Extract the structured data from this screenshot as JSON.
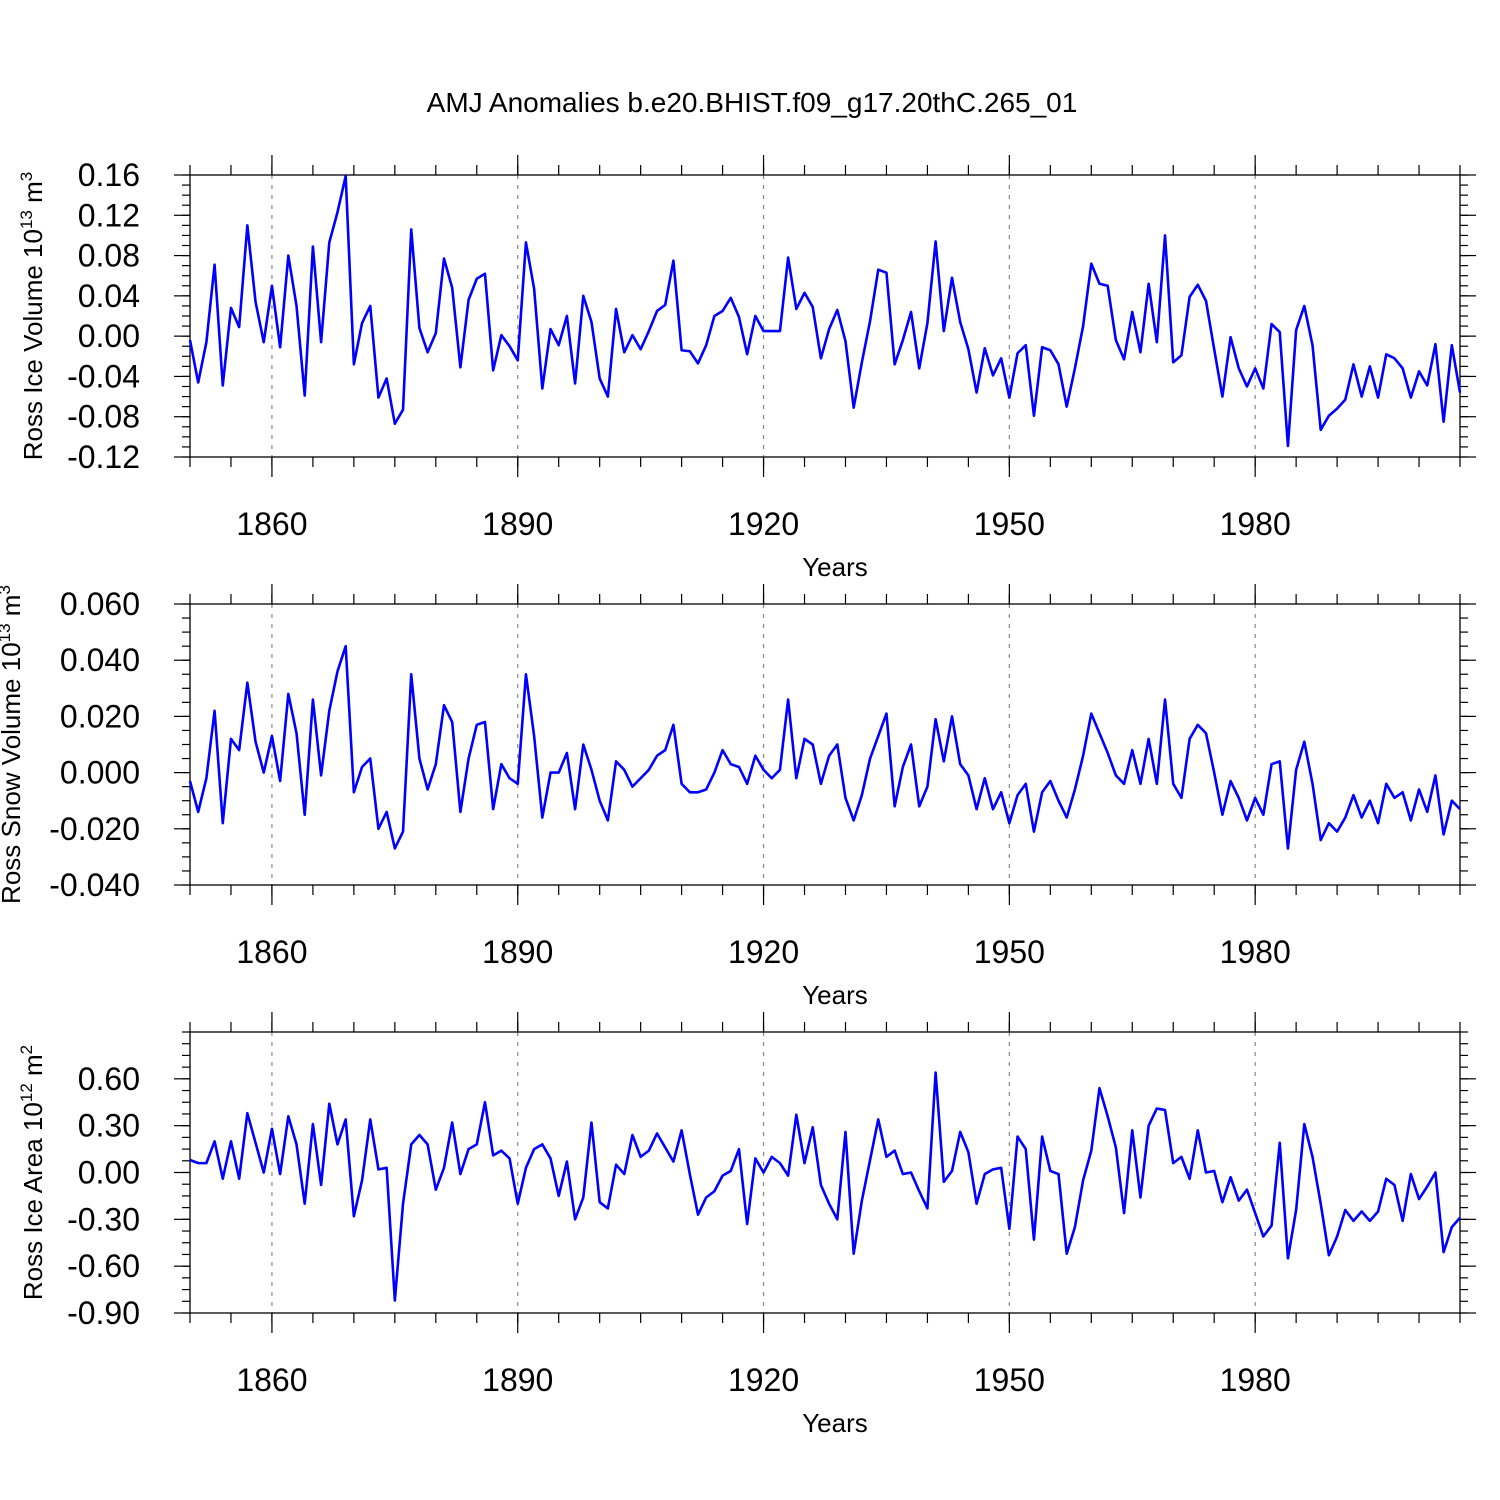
{
  "title": "AMJ Anomalies b.e20.BHIST.f09_g17.20thC.265_01",
  "chart_data": [
    {
      "type": "line",
      "title": "AMJ Anomalies b.e20.BHIST.f09_g17.20thC.265_01",
      "xlabel": "Years",
      "ylabel": {
        "main": "Ross Ice Volume 10",
        "sup1": "13",
        "mid": " m",
        "sup2": "3"
      },
      "xlim": [
        1850,
        2005
      ],
      "ylim": [
        -0.12,
        0.16
      ],
      "yticks": [
        -0.12,
        -0.08,
        -0.04,
        0.0,
        0.04,
        0.08,
        0.12,
        0.16
      ],
      "ytick_labels": [
        "-0.12",
        "-0.08",
        "-0.04",
        "0.00",
        "0.04",
        "0.08",
        "0.12",
        "0.16"
      ],
      "yminor_step": 0.01,
      "xticks": [
        1860,
        1890,
        1920,
        1950,
        1980
      ],
      "xtick_labels": [
        "1860",
        "1890",
        "1920",
        "1950",
        "1980"
      ],
      "xminor_step": 5,
      "grid": "x-major-dashed",
      "color": "#0000ff",
      "x_start": 1850,
      "x_step": 1,
      "series": [
        {
          "name": "Ross Ice Volume",
          "values": [
            -0.004,
            -0.046,
            -0.006,
            0.071,
            -0.049,
            0.028,
            0.009,
            0.11,
            0.034,
            -0.006,
            0.05,
            -0.011,
            0.08,
            0.03,
            -0.059,
            0.089,
            -0.006,
            0.093,
            0.123,
            0.159,
            -0.028,
            0.013,
            0.03,
            -0.061,
            -0.042,
            -0.087,
            -0.073,
            0.106,
            0.008,
            -0.016,
            0.003,
            0.077,
            0.048,
            -0.031,
            0.036,
            0.057,
            0.062,
            -0.034,
            0.001,
            -0.01,
            -0.024,
            0.093,
            0.047,
            -0.052,
            0.007,
            -0.009,
            0.02,
            -0.047,
            0.04,
            0.014,
            -0.042,
            -0.06,
            0.027,
            -0.016,
            0.001,
            -0.013,
            0.005,
            0.025,
            0.031,
            0.075,
            -0.014,
            -0.015,
            -0.027,
            -0.009,
            0.02,
            0.025,
            0.038,
            0.019,
            -0.018,
            0.02,
            0.005,
            0.005,
            0.005,
            0.078,
            0.027,
            0.043,
            0.029,
            -0.022,
            0.007,
            0.026,
            -0.005,
            -0.071,
            -0.026,
            0.015,
            0.066,
            0.063,
            -0.028,
            -0.004,
            0.024,
            -0.032,
            0.013,
            0.094,
            0.005,
            0.058,
            0.014,
            -0.013,
            -0.056,
            -0.012,
            -0.039,
            -0.022,
            -0.061,
            -0.017,
            -0.009,
            -0.079,
            -0.011,
            -0.014,
            -0.028,
            -0.07,
            -0.032,
            0.01,
            0.072,
            0.052,
            0.05,
            -0.004,
            -0.023,
            0.024,
            -0.016,
            0.052,
            -0.006,
            0.1,
            -0.026,
            -0.019,
            0.039,
            0.051,
            0.035,
            -0.013,
            -0.06,
            -0.001,
            -0.032,
            -0.05,
            -0.032,
            -0.052,
            0.012,
            0.004,
            -0.109,
            0.006,
            0.03,
            -0.009,
            -0.093,
            -0.079,
            -0.072,
            -0.063,
            -0.028,
            -0.06,
            -0.03,
            -0.061,
            -0.018,
            -0.022,
            -0.032,
            -0.061,
            -0.035,
            -0.049,
            -0.008,
            -0.085,
            -0.009,
            -0.056
          ]
        }
      ]
    },
    {
      "type": "line",
      "title": "",
      "xlabel": "Years",
      "ylabel": {
        "main": "Ross Snow Volume 10",
        "sup1": "13",
        "mid": " m",
        "sup2": "3"
      },
      "xlim": [
        1850,
        2005
      ],
      "ylim": [
        -0.04,
        0.06
      ],
      "yticks": [
        -0.04,
        -0.02,
        0.0,
        0.02,
        0.04,
        0.06
      ],
      "ytick_labels": [
        "-0.040",
        "-0.020",
        "0.000",
        "0.020",
        "0.040",
        "0.060"
      ],
      "yminor_step": 0.005,
      "xticks": [
        1860,
        1890,
        1920,
        1950,
        1980
      ],
      "xtick_labels": [
        "1860",
        "1890",
        "1920",
        "1950",
        "1980"
      ],
      "xminor_step": 5,
      "grid": "x-major-dashed",
      "color": "#0000ff",
      "x_start": 1850,
      "x_step": 1,
      "series": [
        {
          "name": "Ross Snow Volume",
          "values": [
            -0.003,
            -0.014,
            -0.002,
            0.022,
            -0.018,
            0.012,
            0.008,
            0.032,
            0.011,
            0.0,
            0.013,
            -0.003,
            0.028,
            0.014,
            -0.015,
            0.026,
            -0.001,
            0.022,
            0.036,
            0.045,
            -0.007,
            0.002,
            0.005,
            -0.02,
            -0.014,
            -0.027,
            -0.021,
            0.035,
            0.005,
            -0.006,
            0.003,
            0.024,
            0.018,
            -0.014,
            0.005,
            0.017,
            0.018,
            -0.013,
            0.003,
            -0.002,
            -0.004,
            0.035,
            0.013,
            -0.016,
            0.0,
            0.0,
            0.007,
            -0.013,
            0.01,
            0.001,
            -0.01,
            -0.017,
            0.004,
            0.001,
            -0.005,
            -0.002,
            0.001,
            0.006,
            0.008,
            0.017,
            -0.004,
            -0.007,
            -0.007,
            -0.006,
            0.0,
            0.008,
            0.003,
            0.002,
            -0.004,
            0.006,
            0.001,
            -0.002,
            0.001,
            0.026,
            -0.002,
            0.012,
            0.01,
            -0.004,
            0.006,
            0.01,
            -0.009,
            -0.017,
            -0.008,
            0.005,
            0.013,
            0.021,
            -0.012,
            0.002,
            0.01,
            -0.012,
            -0.005,
            0.019,
            0.004,
            0.02,
            0.003,
            -0.001,
            -0.013,
            -0.002,
            -0.013,
            -0.007,
            -0.018,
            -0.008,
            -0.004,
            -0.021,
            -0.007,
            -0.003,
            -0.01,
            -0.016,
            -0.006,
            0.006,
            0.021,
            0.014,
            0.007,
            -0.001,
            -0.004,
            0.008,
            -0.004,
            0.012,
            -0.004,
            0.026,
            -0.004,
            -0.009,
            0.012,
            0.017,
            0.014,
            0.0,
            -0.015,
            -0.003,
            -0.009,
            -0.017,
            -0.009,
            -0.015,
            0.003,
            0.004,
            -0.027,
            0.001,
            0.011,
            -0.004,
            -0.024,
            -0.018,
            -0.021,
            -0.016,
            -0.008,
            -0.016,
            -0.01,
            -0.018,
            -0.004,
            -0.009,
            -0.007,
            -0.017,
            -0.006,
            -0.014,
            -0.001,
            -0.022,
            -0.01,
            -0.013
          ]
        }
      ]
    },
    {
      "type": "line",
      "title": "",
      "xlabel": "Years",
      "ylabel": {
        "main": "Ross Ice Area 10",
        "sup1": "12",
        "mid": " m",
        "sup2": "2"
      },
      "xlim": [
        1850,
        2005
      ],
      "ylim": [
        -0.9,
        0.9
      ],
      "yticks": [
        -0.9,
        -0.6,
        -0.3,
        0.0,
        0.3,
        0.6
      ],
      "ytick_labels": [
        "-0.90",
        "-0.60",
        "-0.30",
        "0.00",
        "0.30",
        "0.60"
      ],
      "yminor_step": 0.075,
      "xticks": [
        1860,
        1890,
        1920,
        1950,
        1980
      ],
      "xtick_labels": [
        "1860",
        "1890",
        "1920",
        "1950",
        "1980"
      ],
      "xminor_step": 5,
      "grid": "x-major-dashed",
      "color": "#0000ff",
      "x_start": 1850,
      "x_step": 1,
      "series": [
        {
          "name": "Ross Ice Area",
          "values": [
            0.08,
            0.06,
            0.06,
            0.2,
            -0.04,
            0.2,
            -0.04,
            0.38,
            0.19,
            0.0,
            0.28,
            -0.01,
            0.36,
            0.18,
            -0.2,
            0.31,
            -0.08,
            0.44,
            0.18,
            0.34,
            -0.28,
            -0.05,
            0.34,
            0.02,
            0.03,
            -0.82,
            -0.2,
            0.18,
            0.24,
            0.18,
            -0.11,
            0.03,
            0.32,
            -0.01,
            0.15,
            0.18,
            0.45,
            0.11,
            0.14,
            0.09,
            -0.2,
            0.03,
            0.15,
            0.18,
            0.09,
            -0.15,
            0.07,
            -0.3,
            -0.16,
            0.32,
            -0.19,
            -0.23,
            0.05,
            -0.01,
            0.24,
            0.1,
            0.14,
            0.25,
            0.16,
            0.07,
            0.27,
            -0.01,
            -0.27,
            -0.16,
            -0.12,
            -0.02,
            0.01,
            0.15,
            -0.33,
            0.09,
            0.0,
            0.1,
            0.06,
            -0.02,
            0.37,
            0.06,
            0.29,
            -0.08,
            -0.2,
            -0.3,
            0.26,
            -0.52,
            -0.18,
            0.08,
            0.34,
            0.1,
            0.14,
            -0.01,
            0.0,
            -0.12,
            -0.23,
            0.64,
            -0.06,
            0.01,
            0.26,
            0.13,
            -0.2,
            -0.01,
            0.02,
            0.03,
            -0.36,
            0.23,
            0.15,
            -0.43,
            0.23,
            0.01,
            -0.01,
            -0.52,
            -0.35,
            -0.05,
            0.14,
            0.54,
            0.36,
            0.16,
            -0.26,
            0.27,
            -0.16,
            0.3,
            0.41,
            0.4,
            0.06,
            0.1,
            -0.04,
            0.27,
            0.0,
            0.01,
            -0.19,
            -0.03,
            -0.18,
            -0.11,
            -0.26,
            -0.41,
            -0.34,
            0.19,
            -0.55,
            -0.24,
            0.31,
            0.1,
            -0.2,
            -0.53,
            -0.41,
            -0.24,
            -0.31,
            -0.25,
            -0.31,
            -0.25,
            -0.04,
            -0.08,
            -0.31,
            -0.01,
            -0.17,
            -0.09,
            0.0,
            -0.51,
            -0.35,
            -0.29
          ]
        }
      ]
    }
  ]
}
